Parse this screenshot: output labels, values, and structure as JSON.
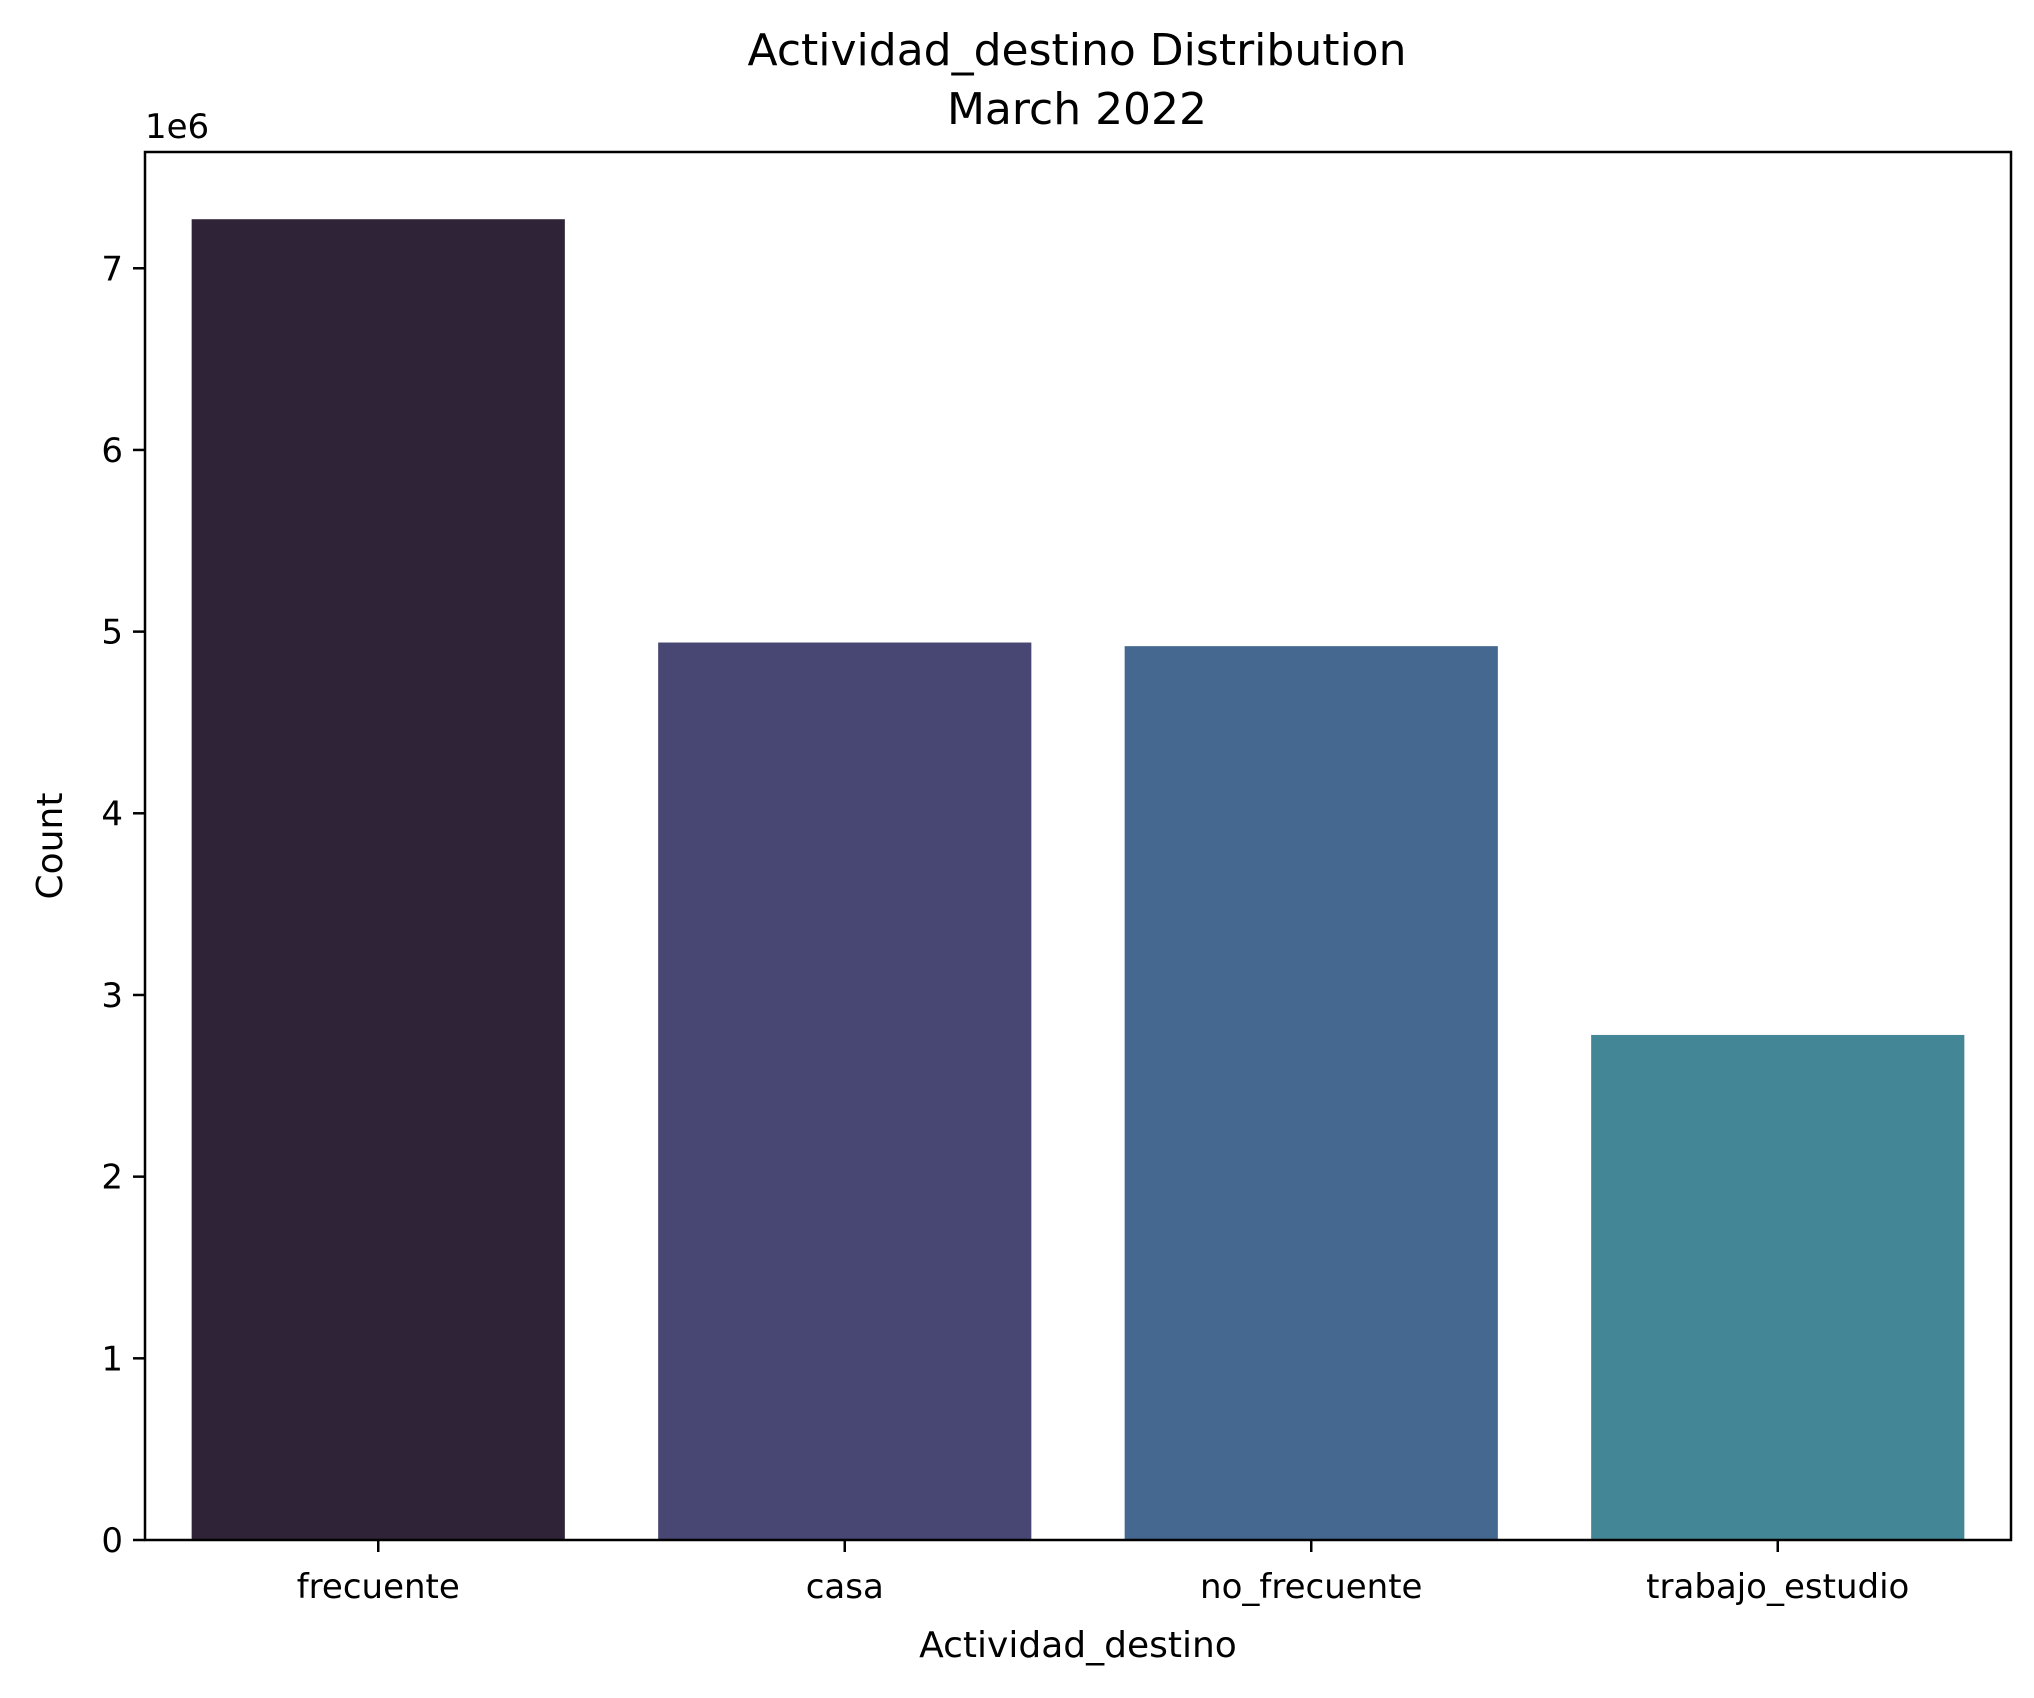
{
  "chart_data": {
    "type": "bar",
    "title": "Actividad_destino Distribution",
    "subtitle": "March 2022",
    "xlabel": "Actividad_destino",
    "ylabel": "Count",
    "y_offset_label": "1e6",
    "categories": [
      "frecuente",
      "casa",
      "no_frecuente",
      "trabajo_estudio"
    ],
    "values": [
      7270000,
      4940000,
      4920000,
      2780000
    ],
    "colors": [
      "#2f2437",
      "#484672",
      "#456890",
      "#438796"
    ],
    "ylim": [
      0,
      7640000
    ],
    "yticks": [
      0,
      1000000,
      2000000,
      3000000,
      4000000,
      5000000,
      6000000,
      7000000
    ],
    "ytick_labels": [
      "0",
      "1",
      "2",
      "3",
      "4",
      "5",
      "6",
      "7"
    ],
    "grid": false,
    "legend": "none"
  }
}
